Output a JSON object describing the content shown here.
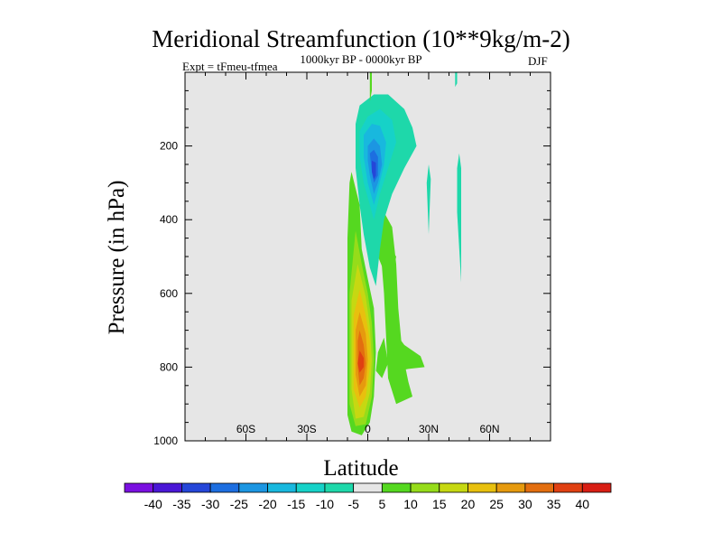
{
  "chart_data": {
    "type": "contour",
    "title": "Meridional Streamfunction (10**9kg/m-2)",
    "experiment": "Expt = tFmeu-tfmea",
    "period": "1000kyr BP - 0000kyr BP",
    "season": "DJF",
    "xlabel": "Latitude",
    "ylabel": "Pressure (in hPa)",
    "xlim": [
      -90,
      90
    ],
    "ylim": [
      1000,
      0
    ],
    "x_ticks": [
      {
        "value": -60,
        "label": "60S"
      },
      {
        "value": -30,
        "label": "30S"
      },
      {
        "value": 0,
        "label": "0"
      },
      {
        "value": 30,
        "label": "30N"
      },
      {
        "value": 60,
        "label": "60N"
      }
    ],
    "y_ticks": [
      {
        "value": 200,
        "label": "200"
      },
      {
        "value": 400,
        "label": "400"
      },
      {
        "value": 600,
        "label": "600"
      },
      {
        "value": 800,
        "label": "800"
      },
      {
        "value": 1000,
        "label": "1000"
      }
    ],
    "background_color": "#e6e6e6",
    "colorbar": {
      "labels": [
        "-40",
        "-35",
        "-30",
        "-25",
        "-20",
        "-15",
        "-10",
        "-5",
        "5",
        "10",
        "15",
        "20",
        "25",
        "30",
        "35",
        "40"
      ],
      "colors": [
        "#7a10e0",
        "#4a17d6",
        "#2546d8",
        "#1d6ee0",
        "#1c96e2",
        "#18b8de",
        "#16d2c8",
        "#1ed8aa",
        "#e6e6e6",
        "#55d820",
        "#96dc1a",
        "#c6d812",
        "#e8c00e",
        "#e69a0e",
        "#e36e0f",
        "#e04012",
        "#d81e14"
      ]
    },
    "features": [
      {
        "name": "southern-positive-cell",
        "sign": "positive",
        "peak_value": 35,
        "peak_lat": -2,
        "peak_p": 780,
        "lat_range": [
          -10,
          2
        ],
        "p_range": [
          260,
          980
        ]
      },
      {
        "name": "equatorial-negative-cell",
        "sign": "negative",
        "peak_value": -30,
        "peak_lat": 3,
        "peak_p": 270,
        "lat_range": [
          -7,
          25
        ],
        "p_range": [
          60,
          600
        ]
      },
      {
        "name": "northern-positive-band",
        "sign": "positive",
        "peak_value": 5,
        "peak_lat": 15,
        "peak_p": 600,
        "lat_range": [
          6,
          28
        ],
        "p_range": [
          380,
          860
        ]
      },
      {
        "name": "northern-negative-streaks",
        "sign": "negative",
        "peak_value": -5,
        "peak_lat": 45,
        "lat_range": [
          30,
          47
        ],
        "p_range": [
          0,
          580
        ]
      }
    ]
  }
}
